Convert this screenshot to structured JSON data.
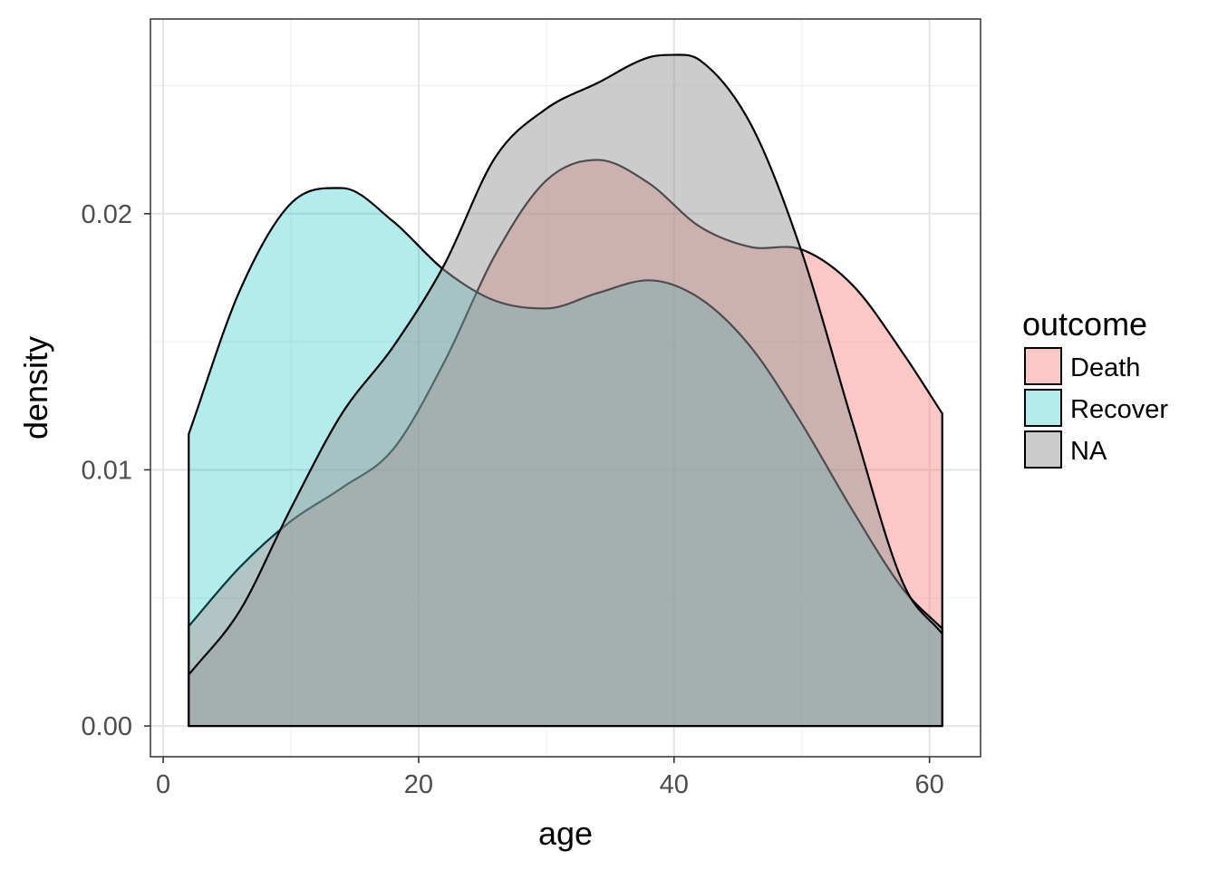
{
  "chart_data": {
    "type": "area",
    "subtype": "density",
    "title": "",
    "xlabel": "age",
    "ylabel": "density",
    "xlim": [
      -1,
      64
    ],
    "ylim": [
      -0.0012,
      0.0276
    ],
    "x_ticks": [
      0,
      20,
      40,
      60
    ],
    "x_tick_labels": [
      "0",
      "20",
      "40",
      "60"
    ],
    "y_ticks": [
      0.0,
      0.01,
      0.02
    ],
    "y_tick_labels": [
      "0.00",
      "0.01",
      "0.02"
    ],
    "grid": true,
    "theme": "bw",
    "legend": {
      "title": "outcome",
      "position": "right"
    },
    "series": [
      {
        "name": "Death",
        "fill": "#F8766D",
        "alpha": 0.4,
        "x": [
          2,
          6,
          10,
          14,
          18,
          22,
          26,
          30,
          34,
          38,
          42,
          46,
          50,
          54,
          58,
          61
        ],
        "y": [
          0.0039,
          0.0062,
          0.008,
          0.0093,
          0.0108,
          0.0142,
          0.0184,
          0.0213,
          0.0221,
          0.0212,
          0.0195,
          0.0187,
          0.0186,
          0.0172,
          0.0145,
          0.0122
        ]
      },
      {
        "name": "Recover",
        "fill": "#00BFC4",
        "alpha": 0.3,
        "x": [
          2,
          6,
          10,
          14,
          18,
          22,
          26,
          30,
          34,
          38,
          42,
          46,
          50,
          54,
          58,
          61
        ],
        "y": [
          0.0114,
          0.017,
          0.0204,
          0.021,
          0.0197,
          0.0178,
          0.0166,
          0.0163,
          0.0169,
          0.0174,
          0.0167,
          0.0148,
          0.0118,
          0.0084,
          0.0053,
          0.0038
        ]
      },
      {
        "name": "NA",
        "fill": "#999999",
        "alpha": 0.5,
        "x": [
          2,
          6,
          10,
          14,
          18,
          22,
          26,
          30,
          34,
          38,
          40,
          42,
          46,
          50,
          54,
          58,
          61
        ],
        "y": [
          0.002,
          0.0045,
          0.0085,
          0.0122,
          0.0148,
          0.018,
          0.0222,
          0.0241,
          0.0251,
          0.0261,
          0.0262,
          0.026,
          0.0235,
          0.0185,
          0.0118,
          0.0055,
          0.0036
        ]
      }
    ]
  }
}
